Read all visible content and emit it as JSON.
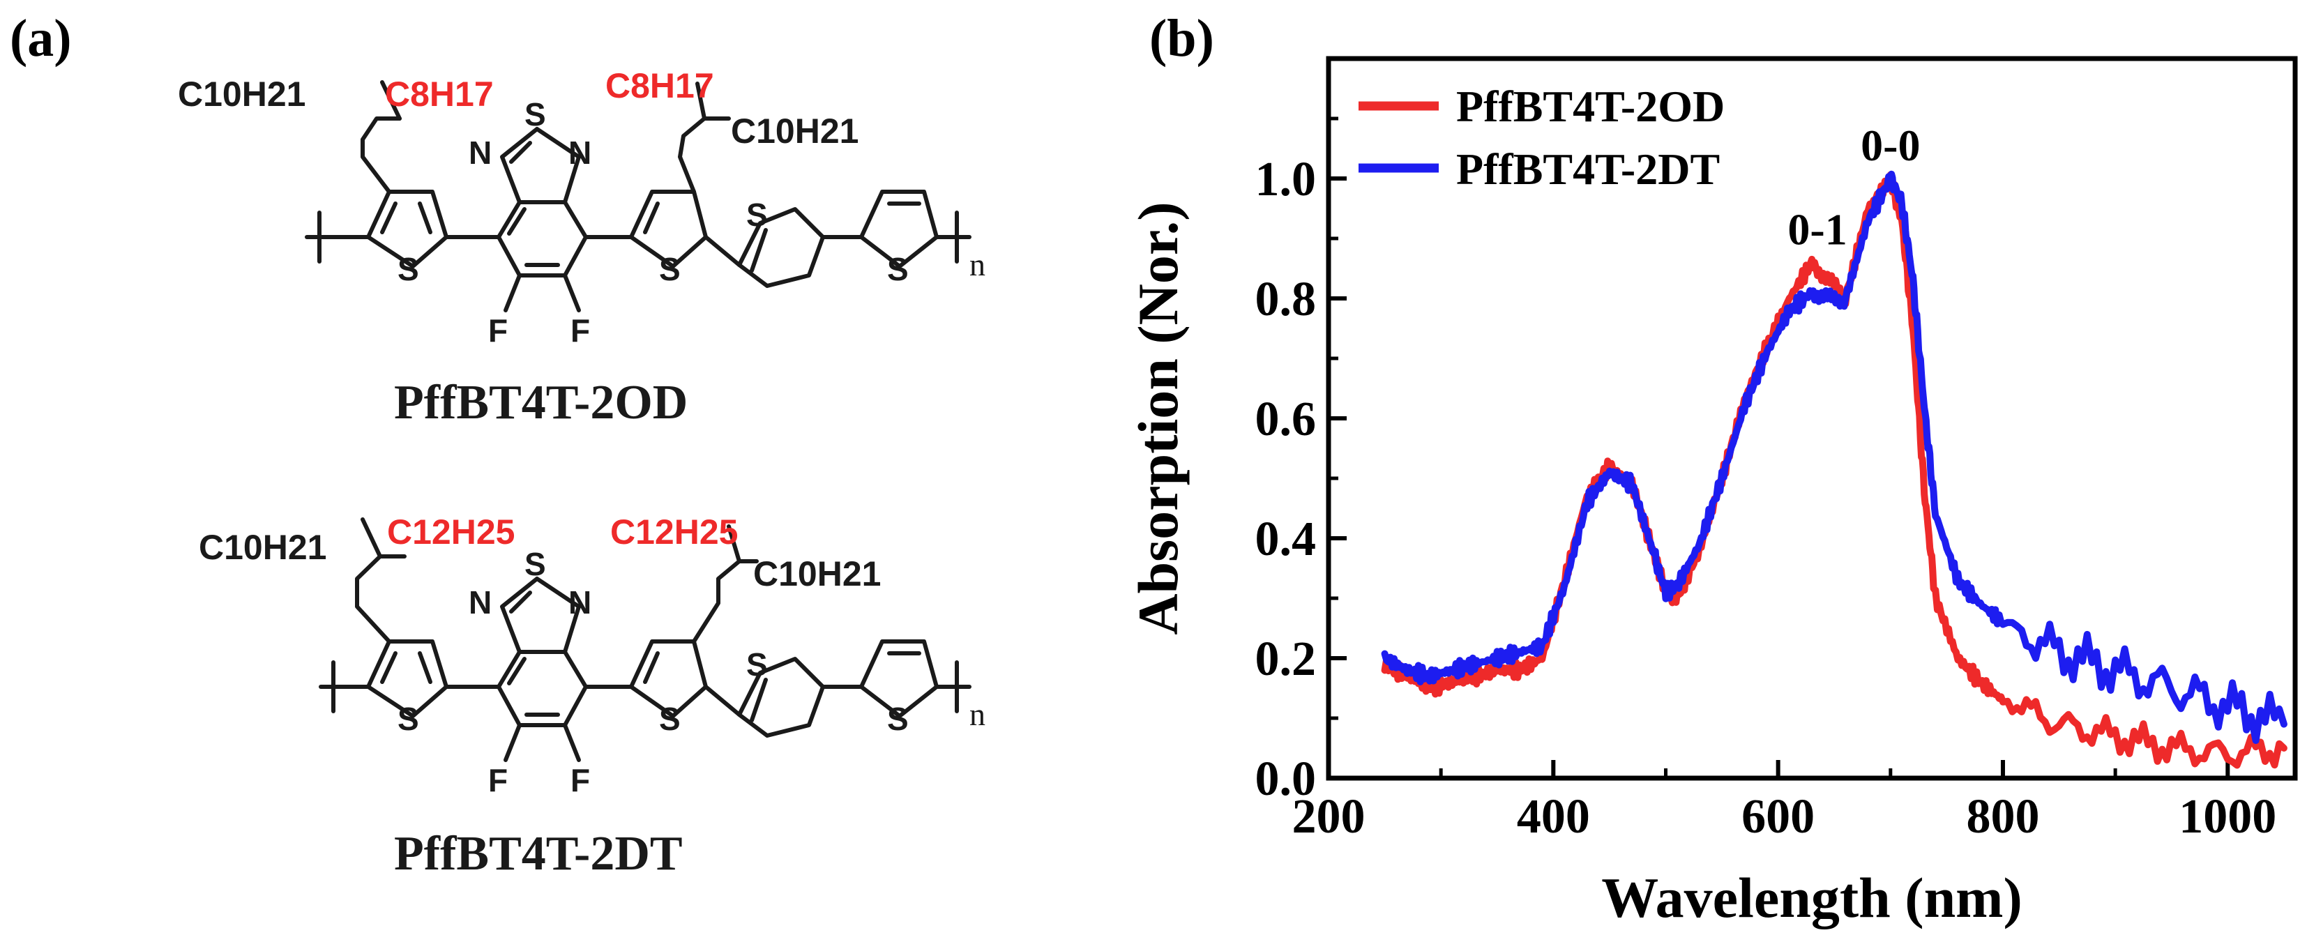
{
  "panels": {
    "a_label": "(a)",
    "b_label": "(b)"
  },
  "colors": {
    "od": "#ee2a2a",
    "dt": "#1d1df0",
    "bond": "#1a1a1a",
    "chain_hl": "#ee2a2a"
  },
  "structures": [
    {
      "name": "PffBT4T-2OD",
      "chain_left_main": "C10H21",
      "chain_left_branch": "C8H17",
      "chain_right_branch": "C8H17",
      "chain_right_main": "C10H21",
      "atoms": {
        "S": "S",
        "N": "N",
        "F": "F",
        "repeat": "n"
      }
    },
    {
      "name": "PffBT4T-2DT",
      "chain_left_main": "C10H21",
      "chain_left_branch": "C12H25",
      "chain_right_branch": "C12H25",
      "chain_right_main": "C10H21",
      "atoms": {
        "S": "S",
        "N": "N",
        "F": "F",
        "repeat": "n"
      }
    }
  ],
  "chart_data": {
    "type": "line",
    "title": "",
    "xlabel": "Wavelength (nm)",
    "ylabel": "Absorption (Nor.)",
    "xlim": [
      200,
      1060
    ],
    "ylim": [
      0,
      1.2
    ],
    "xticks": [
      200,
      400,
      600,
      800,
      1000
    ],
    "yticks": [
      0.0,
      0.2,
      0.4,
      0.6,
      0.8,
      1.0
    ],
    "ytick_labels": [
      "0.0",
      "0.2",
      "0.4",
      "0.6",
      "0.8",
      "1.0"
    ],
    "grid": false,
    "legend_position": "top-left",
    "annotations": [
      {
        "text": "0-0",
        "x": 700,
        "y": 1.03
      },
      {
        "text": "0-1",
        "x": 635,
        "y": 0.89
      }
    ],
    "series": [
      {
        "name": "PffBT4T-2OD",
        "color": "#ee2a2a",
        "x": [
          250,
          270,
          290,
          310,
          330,
          350,
          370,
          390,
          410,
          430,
          450,
          470,
          490,
          500,
          510,
          530,
          550,
          570,
          590,
          610,
          630,
          645,
          660,
          680,
          700,
          710,
          720,
          730,
          740,
          760,
          780,
          800,
          850,
          900,
          950,
          1000,
          1050
        ],
        "y": [
          0.19,
          0.17,
          0.15,
          0.16,
          0.17,
          0.18,
          0.18,
          0.2,
          0.33,
          0.47,
          0.52,
          0.49,
          0.37,
          0.31,
          0.3,
          0.38,
          0.5,
          0.63,
          0.72,
          0.8,
          0.86,
          0.83,
          0.8,
          0.95,
          1.0,
          0.93,
          0.75,
          0.48,
          0.3,
          0.2,
          0.16,
          0.13,
          0.09,
          0.07,
          0.05,
          0.04,
          0.05
        ]
      },
      {
        "name": "PffBT4T-2DT",
        "color": "#1d1df0",
        "x": [
          250,
          270,
          290,
          310,
          330,
          350,
          370,
          390,
          410,
          430,
          450,
          470,
          490,
          500,
          510,
          530,
          550,
          570,
          590,
          610,
          630,
          645,
          660,
          680,
          700,
          710,
          720,
          730,
          740,
          760,
          780,
          800,
          850,
          900,
          950,
          1000,
          1050
        ],
        "y": [
          0.2,
          0.18,
          0.17,
          0.18,
          0.19,
          0.2,
          0.21,
          0.22,
          0.32,
          0.46,
          0.51,
          0.49,
          0.37,
          0.31,
          0.32,
          0.39,
          0.5,
          0.62,
          0.71,
          0.78,
          0.81,
          0.8,
          0.8,
          0.93,
          1.0,
          0.96,
          0.83,
          0.62,
          0.44,
          0.33,
          0.29,
          0.26,
          0.21,
          0.18,
          0.15,
          0.12,
          0.09
        ]
      }
    ]
  }
}
